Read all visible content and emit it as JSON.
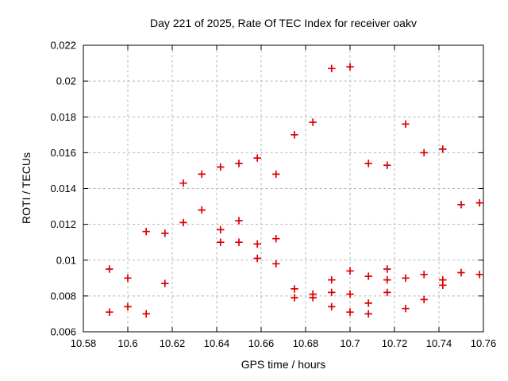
{
  "chart_data": {
    "type": "scatter",
    "title": "Day 221 of 2025, Rate Of TEC Index for receiver oakv",
    "xlabel": "GPS time / hours",
    "ylabel": "ROTI / TECUs",
    "xlim": [
      10.58,
      10.76
    ],
    "ylim": [
      0.006,
      0.022
    ],
    "xticks": [
      10.58,
      10.6,
      10.62,
      10.64,
      10.66,
      10.68,
      10.7,
      10.72,
      10.74,
      10.76
    ],
    "yticks": [
      0.006,
      0.008,
      0.01,
      0.012,
      0.014,
      0.016,
      0.018,
      0.02,
      0.022
    ],
    "grid": true,
    "legend": "none",
    "marker": "plus",
    "marker_color": "#dd0000",
    "grid_color": "#b5b5b5",
    "border_color": "#000000",
    "background": "#ffffff",
    "series": [
      {
        "name": "ROTI",
        "points": [
          [
            10.5917,
            0.0095
          ],
          [
            10.5917,
            0.0071
          ],
          [
            10.6,
            0.009
          ],
          [
            10.6,
            0.0074
          ],
          [
            10.6083,
            0.0116
          ],
          [
            10.6083,
            0.007
          ],
          [
            10.6167,
            0.0115
          ],
          [
            10.6167,
            0.0087
          ],
          [
            10.625,
            0.0143
          ],
          [
            10.625,
            0.0121
          ],
          [
            10.6333,
            0.0148
          ],
          [
            10.6333,
            0.0128
          ],
          [
            10.6417,
            0.0152
          ],
          [
            10.6417,
            0.0117
          ],
          [
            10.6417,
            0.011
          ],
          [
            10.65,
            0.0154
          ],
          [
            10.65,
            0.0122
          ],
          [
            10.65,
            0.011
          ],
          [
            10.6583,
            0.0157
          ],
          [
            10.6583,
            0.0109
          ],
          [
            10.6583,
            0.0101
          ],
          [
            10.6667,
            0.0148
          ],
          [
            10.6667,
            0.0112
          ],
          [
            10.6667,
            0.0098
          ],
          [
            10.675,
            0.017
          ],
          [
            10.675,
            0.0084
          ],
          [
            10.675,
            0.0079
          ],
          [
            10.6833,
            0.0177
          ],
          [
            10.6833,
            0.0081
          ],
          [
            10.6833,
            0.0079
          ],
          [
            10.6917,
            0.0207
          ],
          [
            10.6917,
            0.0089
          ],
          [
            10.6917,
            0.0082
          ],
          [
            10.6917,
            0.0074
          ],
          [
            10.7,
            0.0208
          ],
          [
            10.7,
            0.0094
          ],
          [
            10.7,
            0.0081
          ],
          [
            10.7,
            0.0071
          ],
          [
            10.7083,
            0.0154
          ],
          [
            10.7083,
            0.0091
          ],
          [
            10.7083,
            0.0076
          ],
          [
            10.7083,
            0.007
          ],
          [
            10.7167,
            0.0153
          ],
          [
            10.7167,
            0.0095
          ],
          [
            10.7167,
            0.0089
          ],
          [
            10.7167,
            0.0082
          ],
          [
            10.725,
            0.0176
          ],
          [
            10.725,
            0.009
          ],
          [
            10.725,
            0.0073
          ],
          [
            10.7333,
            0.016
          ],
          [
            10.7333,
            0.0092
          ],
          [
            10.7333,
            0.0078
          ],
          [
            10.7417,
            0.0162
          ],
          [
            10.7417,
            0.0089
          ],
          [
            10.7417,
            0.0086
          ],
          [
            10.75,
            0.0131
          ],
          [
            10.75,
            0.0093
          ],
          [
            10.7583,
            0.0132
          ],
          [
            10.7583,
            0.0092
          ]
        ]
      }
    ]
  }
}
